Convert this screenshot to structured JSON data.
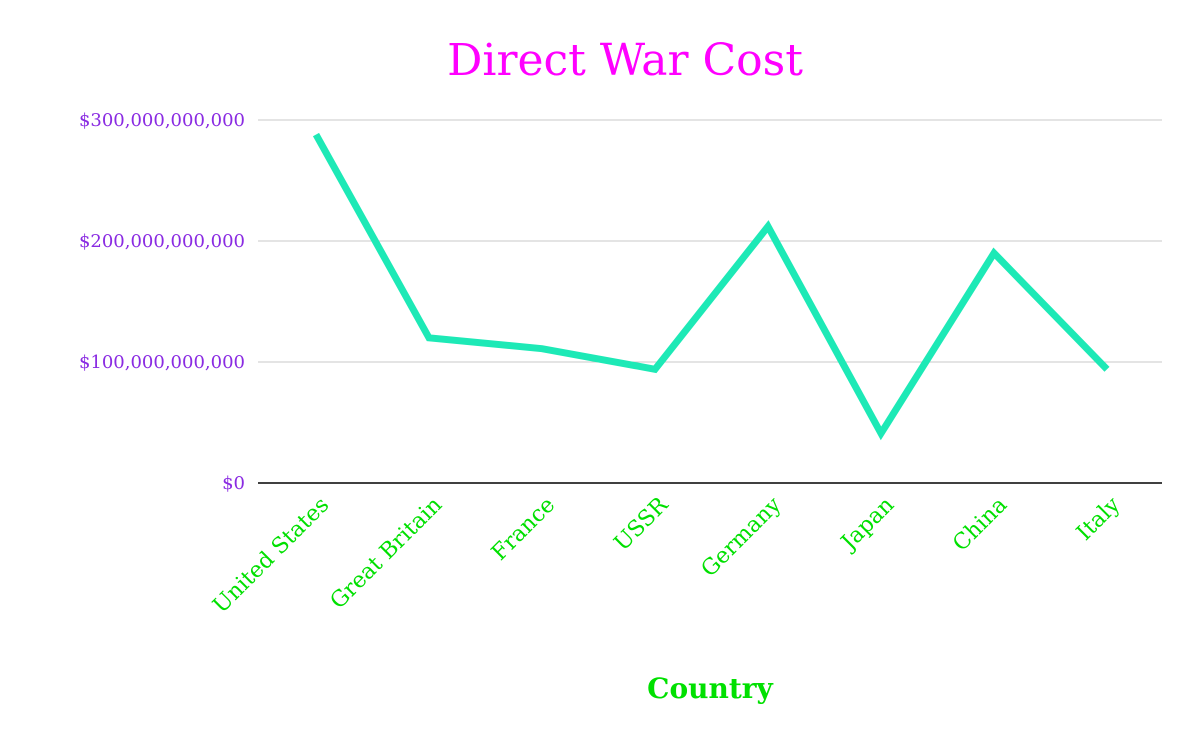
{
  "chart_data": {
    "type": "line",
    "title": "Direct War Cost",
    "xlabel": "Country",
    "ylabel": "",
    "categories": [
      "United States",
      "Great Britain",
      "France",
      "USSR",
      "Germany",
      "Japan",
      "China",
      "Italy"
    ],
    "series": [
      {
        "values": [
          288000000000,
          120000000000,
          111000000000,
          94000000000,
          212000000000,
          41000000000,
          190000000000,
          94000000000
        ]
      }
    ],
    "ylim": [
      0,
      300000000000
    ],
    "yticks": [
      0,
      100000000000,
      200000000000,
      300000000000
    ],
    "ytick_labels": [
      "$0",
      "$100,000,000,000",
      "$200,000,000,000",
      "$300,000,000,000"
    ],
    "grid": true,
    "legend": "none",
    "colors": {
      "title": "#ff00ff",
      "line": "#1de9b6",
      "ytick": "#8a2be2",
      "xtick": "#00e000",
      "xlabel": "#00e000",
      "grid": "#c8c8c8",
      "baseline": "#000000"
    }
  }
}
